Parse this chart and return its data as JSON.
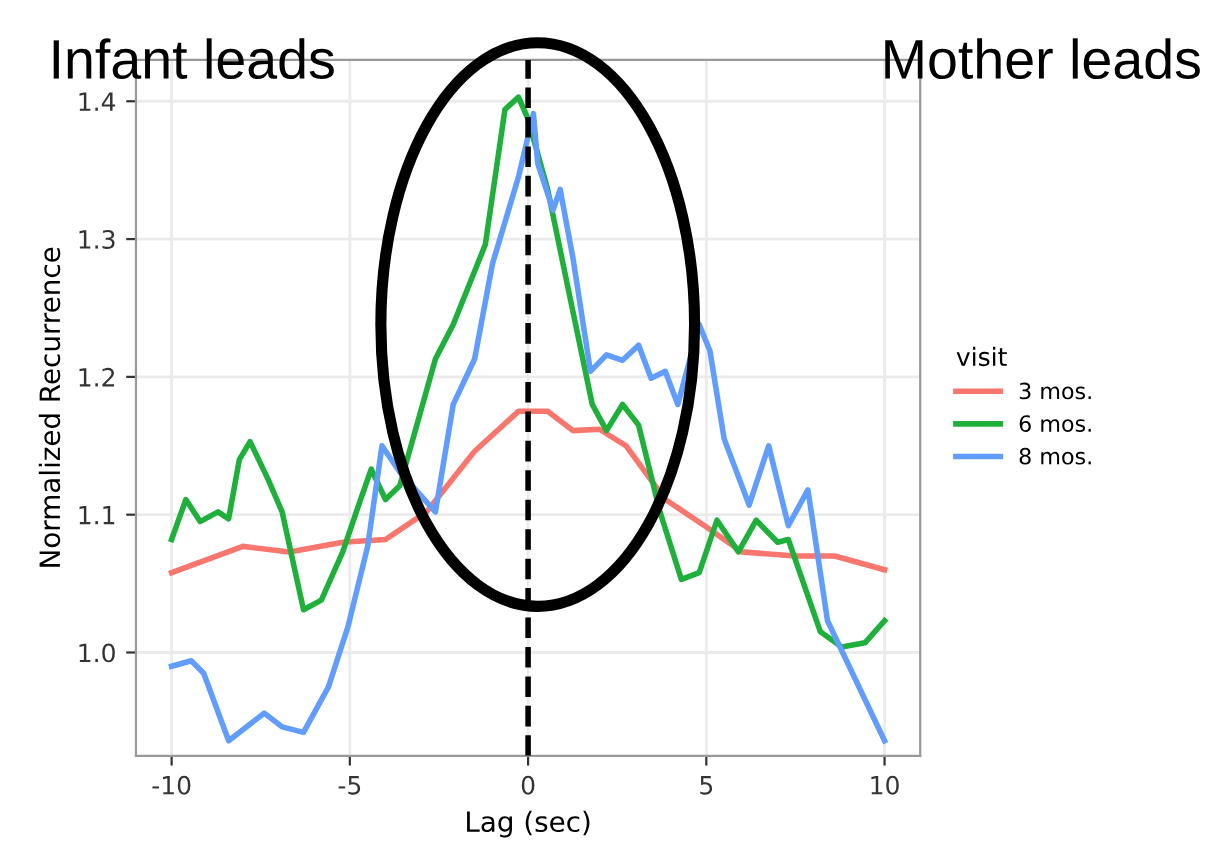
{
  "chart_data": {
    "type": "line",
    "xlabel": "Lag (sec)",
    "ylabel": "Normalized Recurrence",
    "legend_title": "visit",
    "annotations": [
      "Infant leads",
      "Mother leads"
    ],
    "xlim": [
      -11,
      11
    ],
    "xticks": [
      -10,
      -5,
      0,
      5,
      10
    ],
    "ylim": [
      0.925,
      1.43
    ],
    "yticks": [
      {
        "value": 1.0,
        "label": "1.0"
      },
      {
        "value": 1.1,
        "label": "1.1"
      },
      {
        "value": 1.2,
        "label": "1.2"
      },
      {
        "value": 1.3,
        "label": "1.3"
      },
      {
        "value": 1.4,
        "label": "1.4"
      }
    ],
    "grid": true,
    "legend": "right",
    "marker": "none",
    "line_style": "solid",
    "ref_lines": [
      {
        "axis": "x",
        "value": 0,
        "label": null,
        "color": "#000000",
        "line_style": "dashed"
      }
    ],
    "series": [
      {
        "name": "3 mos.",
        "color": "#f8766d",
        "x": [
          -10,
          -8,
          -6.7,
          -5.2,
          -4,
          -2.85,
          -1.5,
          -0.27,
          0.55,
          1.26,
          2.0,
          2.75,
          3.85,
          4.95,
          6.0,
          7.5,
          8.6,
          10
        ],
        "values": [
          1.058,
          1.077,
          1.073,
          1.08,
          1.082,
          1.102,
          1.146,
          1.175,
          1.175,
          1.161,
          1.162,
          1.15,
          1.111,
          1.092,
          1.073,
          1.07,
          1.07,
          1.06
        ]
      },
      {
        "name": "6 mos.",
        "color": "#1fb03c",
        "x": [
          -10,
          -9.6,
          -9.2,
          -8.7,
          -8.4,
          -8.1,
          -7.8,
          -7.3,
          -6.9,
          -6.3,
          -5.8,
          -5.2,
          -4.7,
          -4.4,
          -4.0,
          -3.6,
          -2.6,
          -2.1,
          -1.2,
          -0.65,
          -0.27,
          0,
          0.55,
          1.1,
          1.8,
          2.2,
          2.65,
          3.1,
          3.7,
          4.3,
          4.8,
          5.3,
          5.9,
          6.4,
          7.0,
          7.3,
          8.2,
          8.8,
          9.45,
          10
        ],
        "values": [
          1.082,
          1.111,
          1.095,
          1.102,
          1.097,
          1.14,
          1.153,
          1.126,
          1.102,
          1.031,
          1.038,
          1.073,
          1.111,
          1.133,
          1.111,
          1.121,
          1.213,
          1.238,
          1.296,
          1.394,
          1.403,
          1.387,
          1.336,
          1.267,
          1.18,
          1.161,
          1.18,
          1.165,
          1.102,
          1.053,
          1.058,
          1.096,
          1.073,
          1.096,
          1.08,
          1.082,
          1.015,
          1.004,
          1.007,
          1.023
        ]
      },
      {
        "name": "8 mos.",
        "color": "#619cff",
        "x": [
          -10,
          -9.45,
          -9.1,
          -8.4,
          -7.4,
          -6.9,
          -6.3,
          -5.6,
          -5.05,
          -4.5,
          -4.1,
          -3.6,
          -2.6,
          -2.1,
          -1.5,
          -1.0,
          -0.27,
          0.15,
          0.27,
          0.7,
          0.9,
          1.26,
          1.75,
          2.2,
          2.65,
          3.1,
          3.45,
          3.85,
          4.2,
          4.8,
          5.1,
          5.5,
          6.2,
          6.75,
          7.3,
          7.85,
          8.4,
          10
        ],
        "values": [
          0.99,
          0.994,
          0.985,
          0.936,
          0.956,
          0.946,
          0.942,
          0.975,
          1.019,
          1.077,
          1.15,
          1.131,
          1.102,
          1.18,
          1.213,
          1.282,
          1.345,
          1.391,
          1.355,
          1.321,
          1.336,
          1.286,
          1.204,
          1.216,
          1.212,
          1.223,
          1.199,
          1.204,
          1.18,
          1.238,
          1.219,
          1.155,
          1.107,
          1.15,
          1.092,
          1.118,
          1.023,
          0.936
        ]
      }
    ]
  }
}
